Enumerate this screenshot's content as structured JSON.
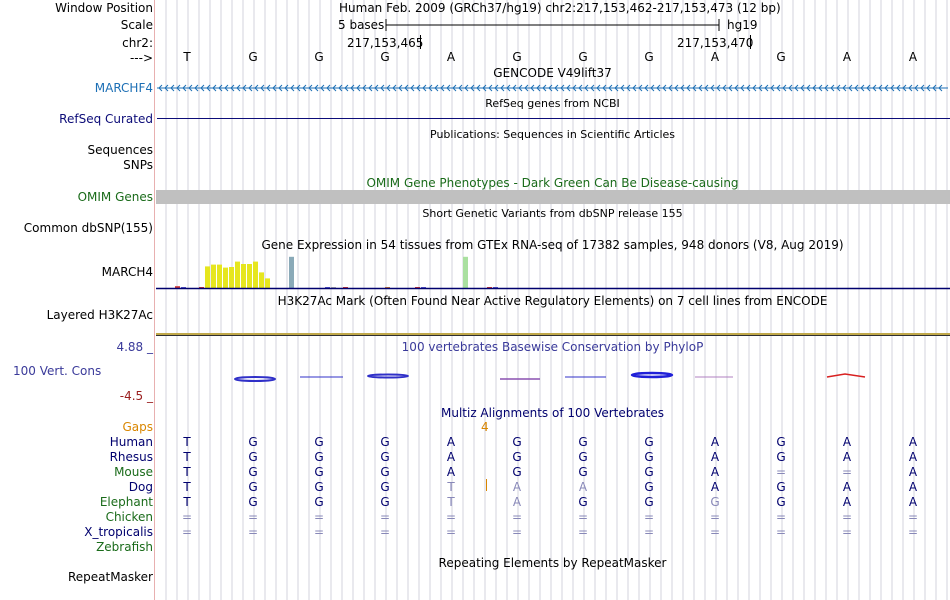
{
  "colors": {
    "gridline": "#d3d3de",
    "divider": "#e8b0b0",
    "gene_blue": "#1c6fb5",
    "refseq_navy": "#0c0c78",
    "omim_green": "#1a6b1a",
    "omim_bar": "#c0c0c0",
    "gaps_orange": "#d98600",
    "cons_blue": "#3a3a9a",
    "cons_red": "#9a1e1e",
    "align_navy": "#00006e",
    "align_green": "#1a6b1a",
    "gtex_yellow": "#e6e61e",
    "h3k_line": "#c0a84a"
  },
  "header": {
    "window_position_label": "Window Position",
    "scale_label": "Scale",
    "chrom_label": "chr2:",
    "strand_label": "--->",
    "assembly_info": "Human Feb. 2009 (GRCh37/hg19)   chr2:217,153,462-217,153,473 (12 bp)",
    "scale_text": "5 bases",
    "db": "hg19",
    "pos_left": "217,153,465",
    "pos_right": "217,153,470"
  },
  "sequence": [
    "T",
    "G",
    "G",
    "G",
    "A",
    "G",
    "G",
    "G",
    "A",
    "G",
    "A",
    "A"
  ],
  "tracks": {
    "gencode": {
      "title": "GENCODE V49lift37",
      "label": "MARCHF4"
    },
    "refseq": {
      "title": "RefSeq genes from NCBI",
      "label": "RefSeq Curated"
    },
    "publications": {
      "title": "Publications: Sequences in Scientific Articles",
      "label1": "Sequences",
      "label2": "SNPs"
    },
    "omim": {
      "title": "OMIM Gene Phenotypes - Dark Green Can Be Disease-causing",
      "label": "OMIM Genes"
    },
    "dbsnp": {
      "title": "Short Genetic Variants from dbSNP release 155",
      "label": "Common dbSNP(155)"
    },
    "gtex": {
      "title": "Gene Expression in 54 tissues from GTEx RNA-seq of 17382 samples, 948 donors (V8, Aug 2019)",
      "label": "MARCH4"
    },
    "h3k27ac": {
      "title": "H3K27Ac Mark (Often Found Near Active Regulatory Elements) on 7 cell lines from ENCODE",
      "label": "Layered H3K27Ac"
    },
    "cons": {
      "title": "100 vertebrates Basewise Conservation by PhyloP",
      "label": "100 Vert. Cons",
      "max": "4.88 _",
      "min": "-4.5 _"
    },
    "multiz": {
      "title": "Multiz Alignments of 100 Vertebrates",
      "gaps_label": "Gaps",
      "gap_count": "4"
    },
    "repeatmasker": {
      "title": "Repeating Elements by RepeatMasker",
      "label": "RepeatMasker"
    }
  },
  "gtex_values": [
    0.15,
    0.05,
    0,
    0,
    0.05,
    1.8,
    1.95,
    1.95,
    1.7,
    1.75,
    2.2,
    2.0,
    2.0,
    2.2,
    1.3,
    0.8,
    0,
    0,
    0,
    2.6,
    0,
    0,
    0,
    0,
    0,
    0.08,
    0.06,
    0,
    0.04,
    0,
    0,
    0,
    0,
    0,
    0,
    0.05,
    0,
    0,
    0,
    0,
    0.05,
    0.04,
    0,
    0,
    0,
    0,
    0,
    0,
    2.6,
    0,
    0,
    0,
    0.06,
    0.05
  ],
  "alignment": [
    {
      "species": "Human",
      "color": "#00006e",
      "bases": [
        "T",
        "G",
        "G",
        "G",
        "A",
        "G",
        "G",
        "G",
        "A",
        "G",
        "A",
        "A"
      ]
    },
    {
      "species": "Rhesus",
      "color": "#00006e",
      "bases": [
        "T",
        "G",
        "G",
        "G",
        "A",
        "G",
        "G",
        "G",
        "A",
        "G",
        "A",
        "A"
      ]
    },
    {
      "species": "Mouse",
      "color": "#1a6b1a",
      "bases": [
        "T",
        "G",
        "G",
        "G",
        "A",
        "G",
        "G",
        "G",
        "A",
        "=",
        "=",
        "A"
      ]
    },
    {
      "species": "Dog",
      "color": "#00006e",
      "bases": [
        "T",
        "G",
        "G",
        "G",
        "T",
        "A",
        "A",
        "G",
        "A",
        "G",
        "A",
        "A"
      ]
    },
    {
      "species": "Elephant",
      "color": "#1a6b1a",
      "bases": [
        "T",
        "G",
        "G",
        "G",
        "T",
        "A",
        "G",
        "G",
        "G",
        "G",
        "A",
        "A"
      ]
    },
    {
      "species": "Chicken",
      "color": "#1a6b1a",
      "bases": [
        "=",
        "=",
        "=",
        "=",
        "=",
        "=",
        "=",
        "=",
        "=",
        "=",
        "=",
        "="
      ]
    },
    {
      "species": "X_tropicalis",
      "color": "#00006e",
      "bases": [
        "=",
        "=",
        "=",
        "=",
        "=",
        "=",
        "=",
        "=",
        "=",
        "=",
        "=",
        "="
      ]
    },
    {
      "species": "Zebrafish",
      "color": "#1a6b1a",
      "bases": [
        "",
        "",
        "",
        "",
        "",
        "",
        "",
        "",
        "",
        "",
        "",
        ""
      ]
    }
  ],
  "mismatch_positions": {
    "Mouse": [
      9,
      10
    ],
    "Dog": [
      4,
      5,
      6
    ],
    "Elephant": [
      4,
      5,
      8
    ]
  }
}
